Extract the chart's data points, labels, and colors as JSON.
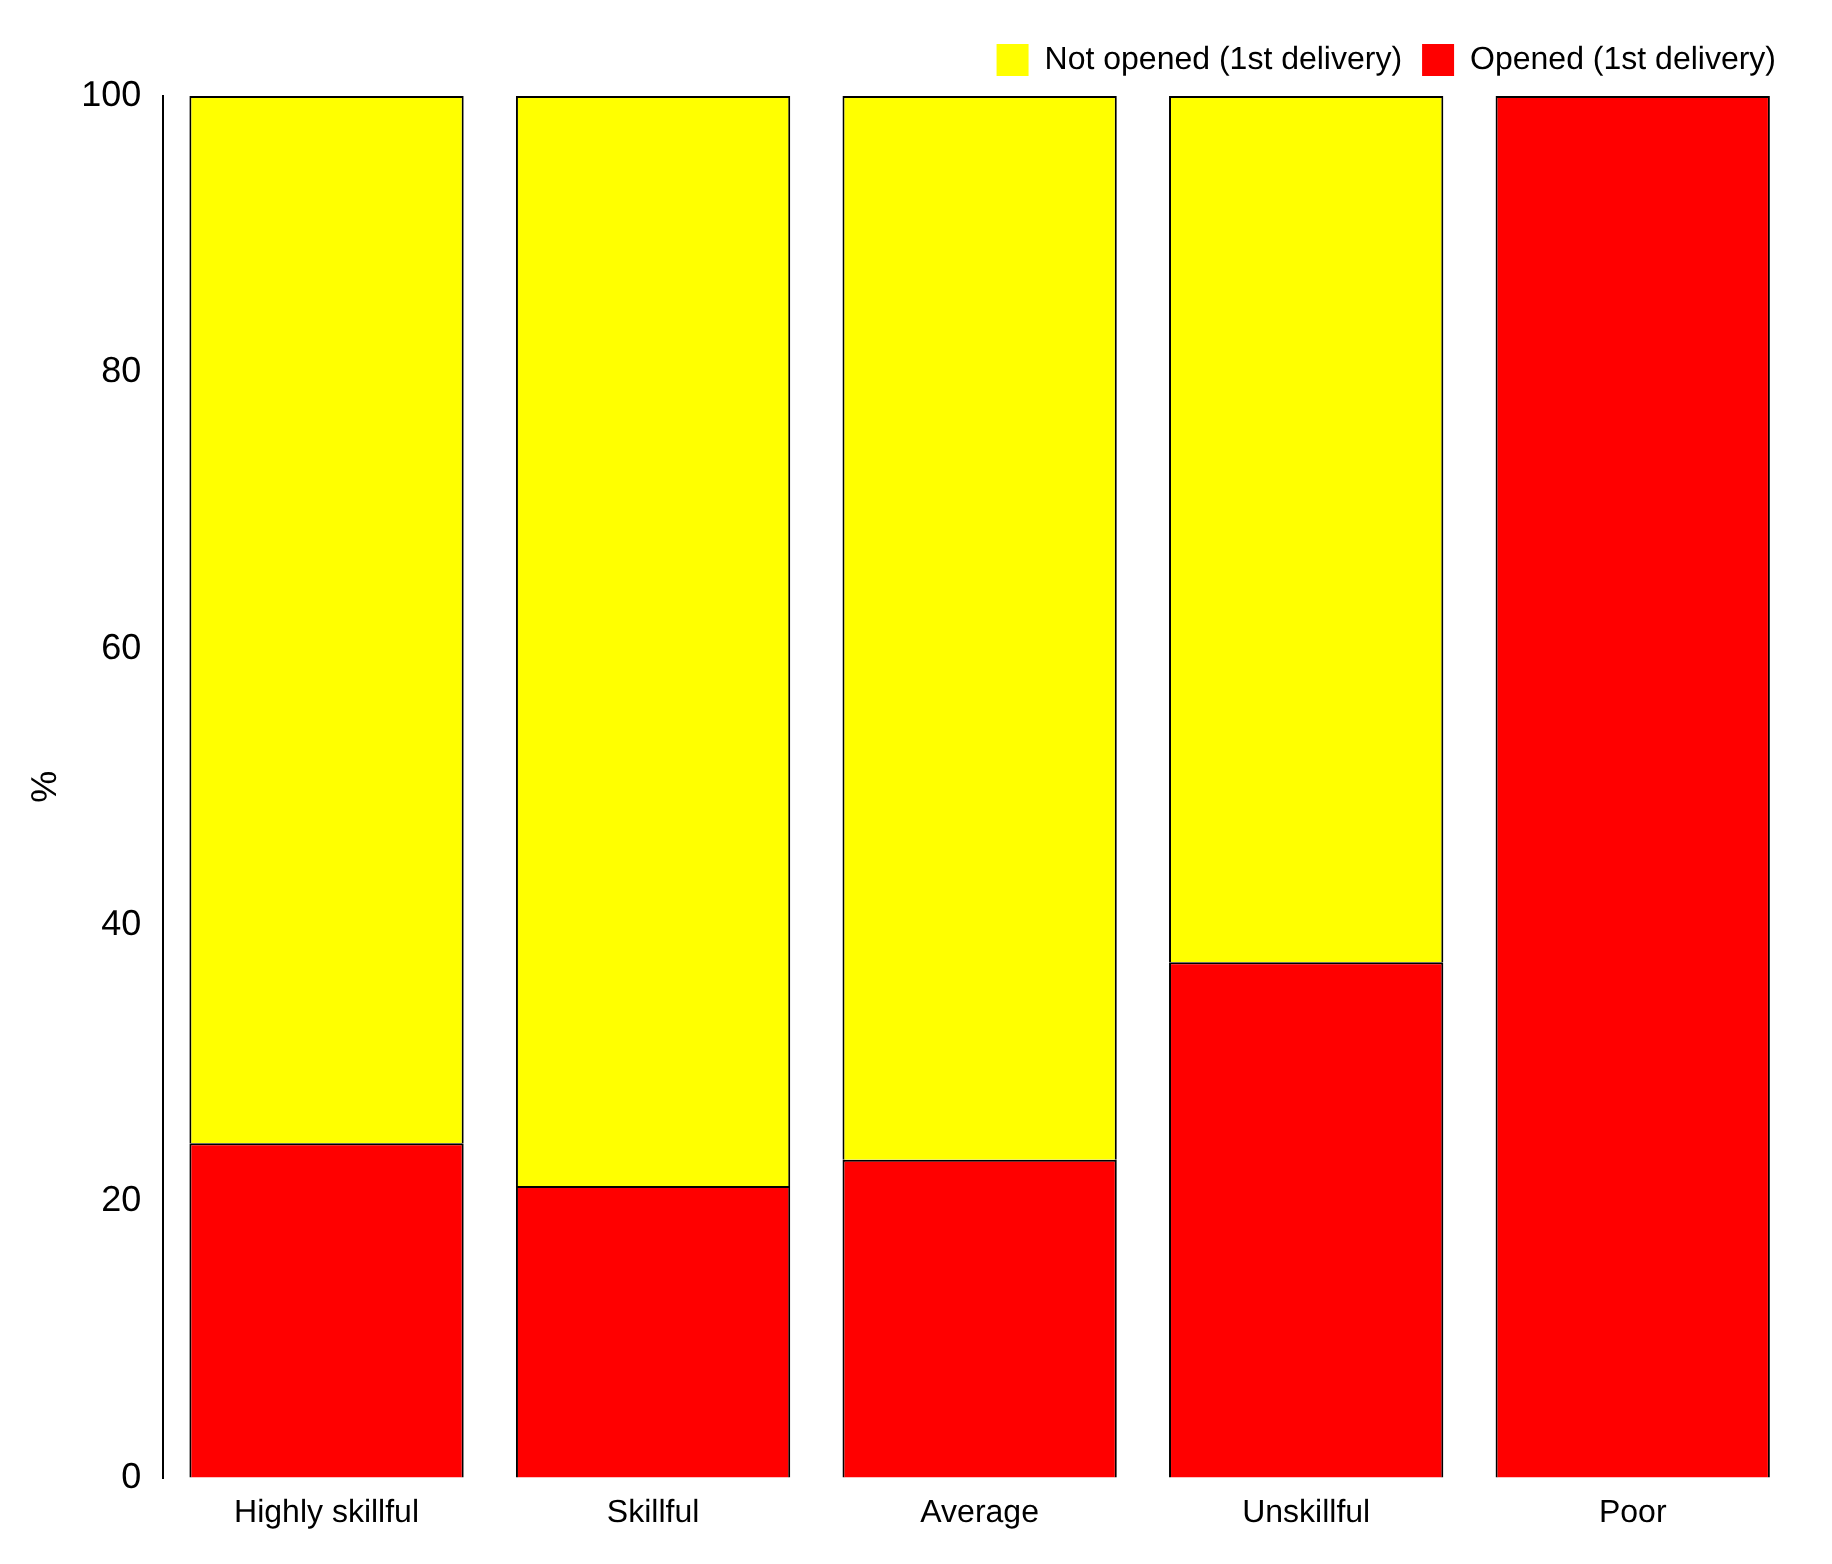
{
  "chart_data": {
    "type": "bar",
    "ylabel": "%",
    "categories": [
      "Highly skillful",
      "Skillful",
      "Average",
      "Unskillful",
      "Poor"
    ],
    "series": [
      {
        "name": "Opened (1st delivery)",
        "color": "#ff0000",
        "values": [
          24.2,
          21.1,
          23.0,
          37.3,
          100
        ]
      },
      {
        "name": "Not opened (1st delivery)",
        "color": "#ffff00",
        "values": [
          75.8,
          78.9,
          77.0,
          62.7,
          0
        ]
      }
    ],
    "stacked": true,
    "ylim": [
      0,
      100
    ],
    "yticks": [
      0,
      20,
      40,
      60,
      80,
      100
    ],
    "grid": false,
    "legend": "top right"
  }
}
